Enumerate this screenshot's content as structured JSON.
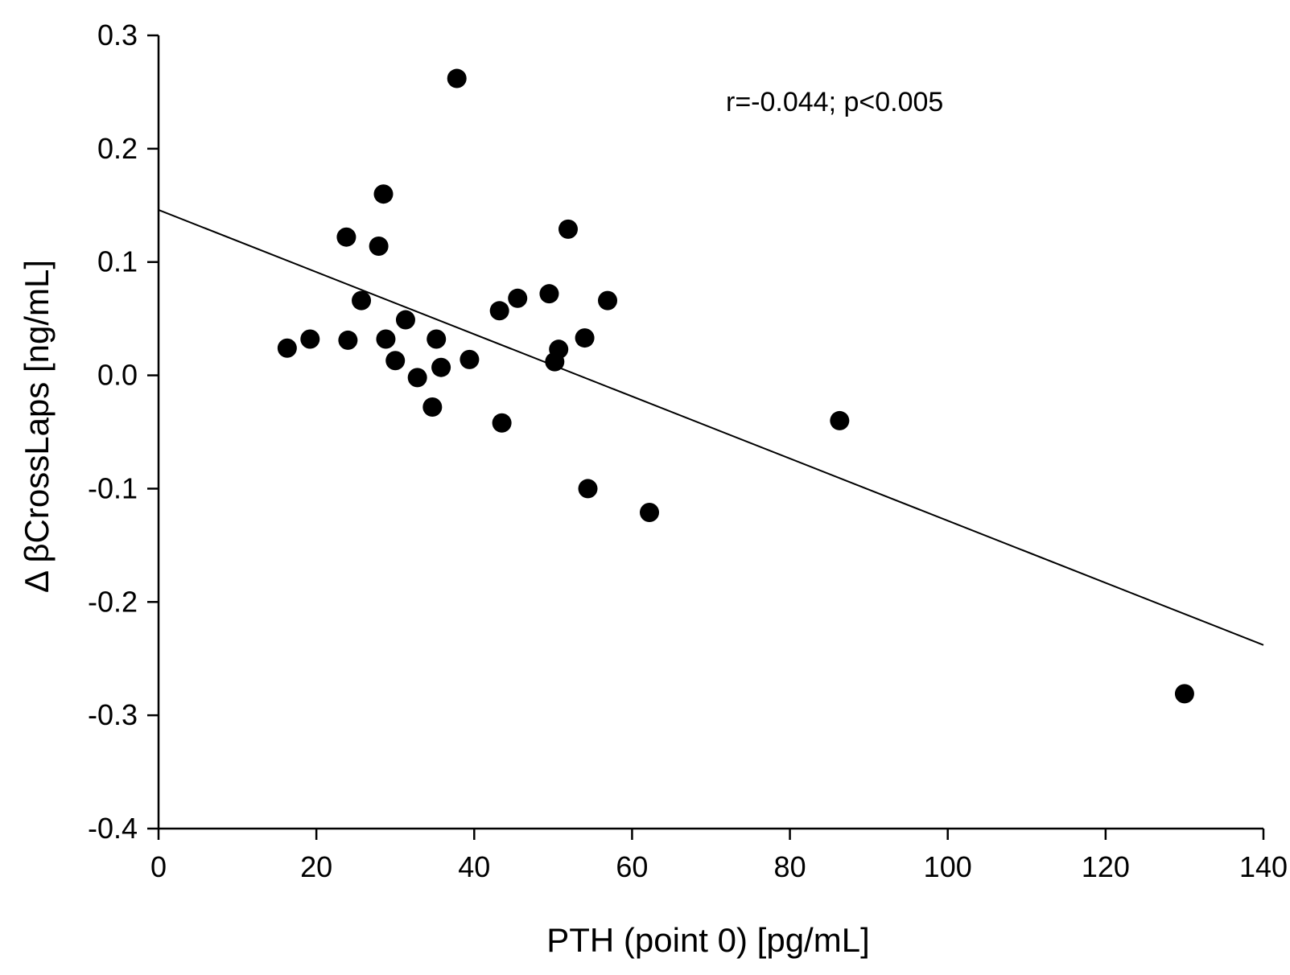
{
  "chart_data": {
    "type": "scatter",
    "title": "",
    "xlabel": "PTH (point 0) [pg/mL]",
    "ylabel": "Δ βCrossLaps [ng/mL]",
    "xlim": [
      0,
      140
    ],
    "ylim": [
      -0.4,
      0.3
    ],
    "xticks": [
      0,
      20,
      40,
      60,
      80,
      100,
      120,
      140
    ],
    "xtick_labels": [
      "0",
      "20",
      "40",
      "60",
      "80",
      "100",
      "120",
      "140"
    ],
    "yticks": [
      -0.4,
      -0.3,
      -0.2,
      -0.1,
      0.0,
      0.1,
      0.2,
      0.3
    ],
    "ytick_labels": [
      "-0.4",
      "-0.3",
      "-0.2",
      "-0.1",
      "0.0",
      "0.1",
      "0.2",
      "0.3"
    ],
    "grid": false,
    "annotation": "r=-0.044; p<0.005",
    "points": [
      {
        "x": 16.3,
        "y": 0.024
      },
      {
        "x": 19.2,
        "y": 0.032
      },
      {
        "x": 23.8,
        "y": 0.122
      },
      {
        "x": 24.0,
        "y": 0.031
      },
      {
        "x": 25.7,
        "y": 0.066
      },
      {
        "x": 27.9,
        "y": 0.114
      },
      {
        "x": 28.5,
        "y": 0.16
      },
      {
        "x": 28.8,
        "y": 0.032
      },
      {
        "x": 30.0,
        "y": 0.013
      },
      {
        "x": 31.3,
        "y": 0.049
      },
      {
        "x": 32.8,
        "y": -0.002
      },
      {
        "x": 34.7,
        "y": -0.028
      },
      {
        "x": 35.2,
        "y": 0.032
      },
      {
        "x": 35.8,
        "y": 0.007
      },
      {
        "x": 37.8,
        "y": 0.262
      },
      {
        "x": 39.4,
        "y": 0.014
      },
      {
        "x": 43.2,
        "y": 0.057
      },
      {
        "x": 43.5,
        "y": -0.042
      },
      {
        "x": 45.5,
        "y": 0.068
      },
      {
        "x": 49.5,
        "y": 0.072
      },
      {
        "x": 50.2,
        "y": 0.012
      },
      {
        "x": 50.7,
        "y": 0.023
      },
      {
        "x": 51.9,
        "y": 0.129
      },
      {
        "x": 54.0,
        "y": 0.033
      },
      {
        "x": 54.4,
        "y": -0.1
      },
      {
        "x": 56.9,
        "y": 0.066
      },
      {
        "x": 62.2,
        "y": -0.121
      },
      {
        "x": 86.3,
        "y": -0.04
      },
      {
        "x": 130.0,
        "y": -0.281
      }
    ],
    "regression": {
      "x1": 0,
      "y1": 0.146,
      "x2": 140,
      "y2": -0.238
    }
  }
}
